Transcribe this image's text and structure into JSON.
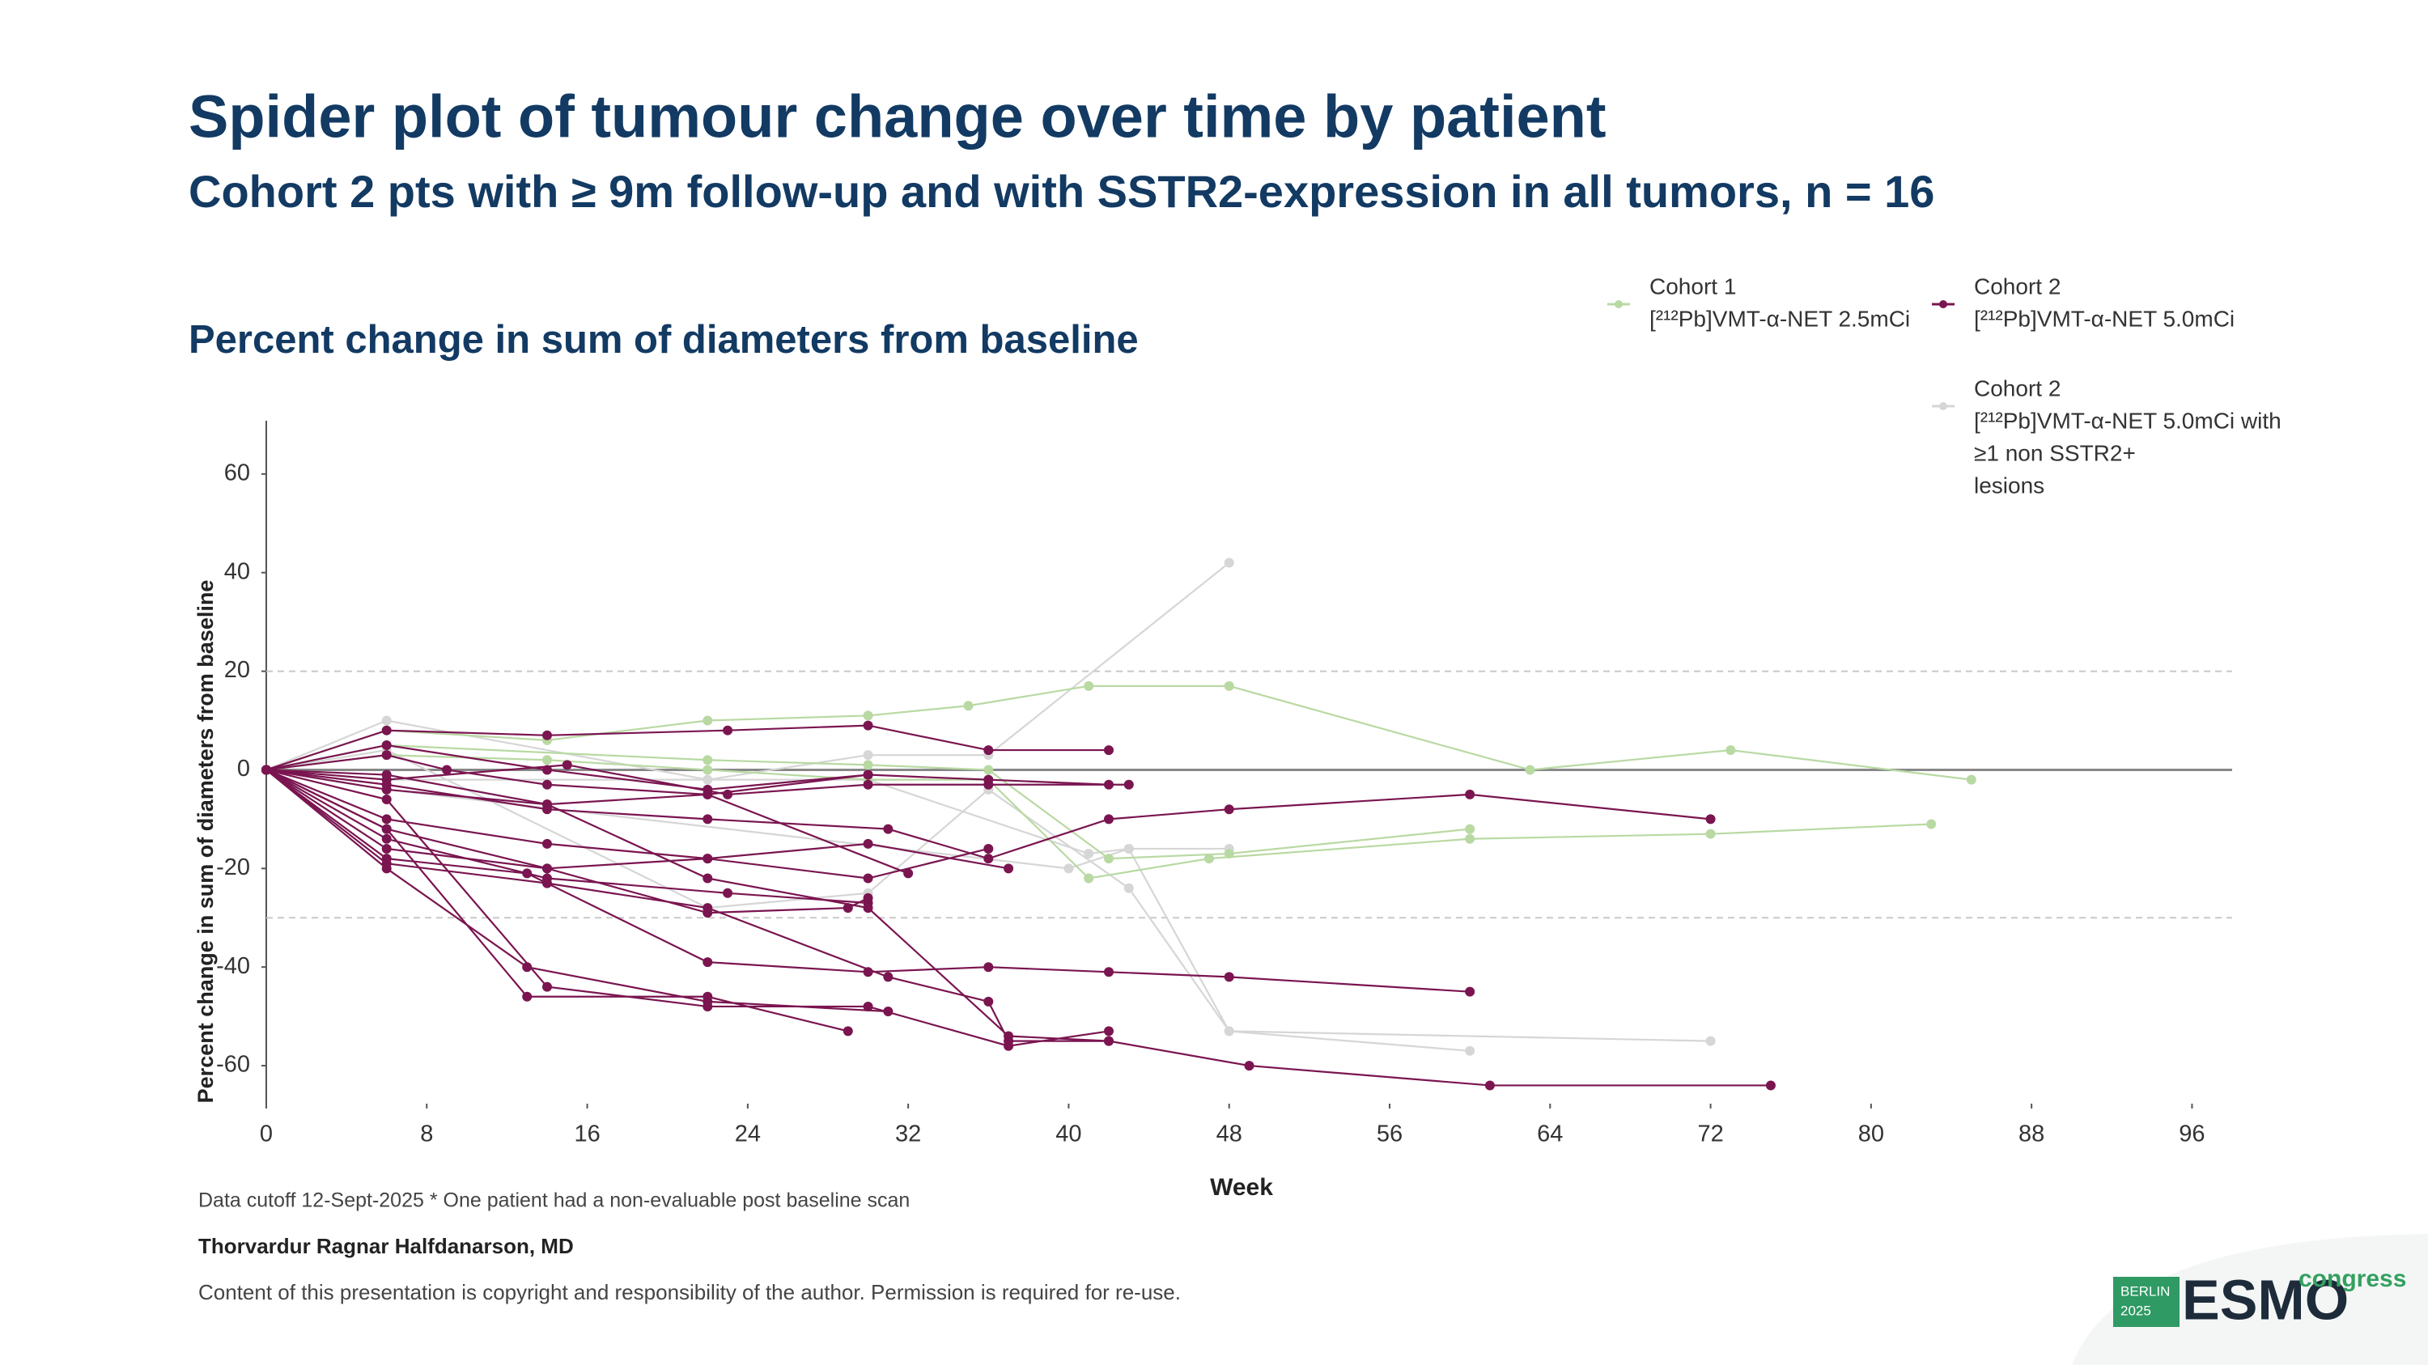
{
  "title": "Spider plot of tumour change over time by patient",
  "subtitle": "Cohort 2 pts with ≥ 9m follow-up and with SSTR2-expression in all tumors, n = 16",
  "chart_data": {
    "type": "line",
    "title": "Percent change in sum of diameters from baseline",
    "ylabel": "Percent change in sum of diameters from baseline",
    "xlabel": "Week",
    "xlim": [
      0,
      98
    ],
    "ylim": [
      -67.7,
      70.8
    ],
    "xticks": [
      0,
      8,
      16,
      24,
      32,
      40,
      48,
      56,
      64,
      72,
      80,
      88,
      96
    ],
    "yticks": [
      -60,
      -40,
      -20,
      0,
      20,
      40,
      60
    ],
    "reference_lines": [
      {
        "value": 20,
        "style": "dashed"
      },
      {
        "value": -30,
        "style": "dashed"
      },
      {
        "value": 0,
        "style": "solid"
      }
    ],
    "series": [
      {
        "name": "Cohort 1",
        "description": [
          "[²¹²Pb]VMT-α-NET 2.5mCi"
        ],
        "color": "#b9d9a3",
        "patients": [
          {
            "x": [
              0,
              6,
              14,
              22,
              30,
              35,
              41,
              48,
              63,
              73,
              85
            ],
            "values": [
              0,
              8,
              6,
              10,
              11,
              13,
              17,
              17,
              0,
              4,
              -2
            ]
          },
          {
            "x": [
              0,
              6,
              14,
              22,
              30,
              36,
              41,
              47,
              60,
              72,
              83
            ],
            "values": [
              0,
              3,
              2,
              0,
              -2,
              -2,
              -22,
              -18,
              -14,
              -13,
              -11
            ]
          },
          {
            "x": [
              0,
              6,
              22,
              30,
              36,
              42,
              48,
              60
            ],
            "values": [
              0,
              5,
              2,
              1,
              0,
              -18,
              -17,
              -12
            ]
          }
        ]
      },
      {
        "name": "Cohort 2",
        "description": [
          "[²¹²Pb]VMT-α-NET 5.0mCi"
        ],
        "color": "#7a1550",
        "patients": [
          {
            "x": [
              0,
              6,
              14,
              23,
              30,
              36,
              42
            ],
            "values": [
              0,
              8,
              7,
              8,
              9,
              4,
              4
            ]
          },
          {
            "x": [
              0,
              6,
              15,
              23,
              30,
              36,
              43
            ],
            "values": [
              0,
              -2,
              1,
              -5,
              -3,
              -3,
              -3
            ]
          },
          {
            "x": [
              0,
              6,
              14,
              22,
              30,
              36,
              42
            ],
            "values": [
              0,
              -4,
              -7,
              -5,
              -1,
              -2,
              -3
            ]
          },
          {
            "x": [
              0,
              6,
              14,
              22,
              31,
              36,
              42,
              48,
              60,
              72
            ],
            "values": [
              0,
              -3,
              -8,
              -10,
              -12,
              -18,
              -10,
              -8,
              -5,
              -10
            ]
          },
          {
            "x": [
              0,
              6,
              14,
              22,
              30,
              37
            ],
            "values": [
              0,
              -10,
              -15,
              -18,
              -15,
              -20
            ]
          },
          {
            "x": [
              0,
              6,
              14,
              22,
              30,
              36
            ],
            "values": [
              0,
              -12,
              -20,
              -18,
              -22,
              -16
            ]
          },
          {
            "x": [
              0,
              6,
              14,
              23,
              30
            ],
            "values": [
              0,
              -14,
              -22,
              -25,
              -27
            ]
          },
          {
            "x": [
              0,
              6,
              14,
              22,
              29,
              30
            ],
            "values": [
              0,
              -16,
              -20,
              -29,
              -28,
              -26
            ]
          },
          {
            "x": [
              0,
              6,
              13,
              22,
              30,
              36,
              42,
              48,
              60
            ],
            "values": [
              0,
              -18,
              -21,
              -39,
              -41,
              -40,
              -41,
              -42,
              -45
            ]
          },
          {
            "x": [
              0,
              6,
              13,
              22,
              31
            ],
            "values": [
              0,
              -20,
              -40,
              -47,
              -49
            ]
          },
          {
            "x": [
              0,
              6,
              14,
              22,
              30,
              37,
              42
            ],
            "values": [
              0,
              -6,
              -44,
              -48,
              -48,
              -56,
              -53
            ]
          },
          {
            "x": [
              0,
              6,
              13,
              22,
              29
            ],
            "values": [
              0,
              -12,
              -46,
              -46,
              -53
            ]
          },
          {
            "x": [
              0,
              6,
              14,
              22,
              31,
              36,
              37,
              42
            ],
            "values": [
              0,
              -19,
              -23,
              -28,
              -42,
              -47,
              -55,
              -55
            ]
          },
          {
            "x": [
              0,
              6,
              14,
              22,
              30,
              37,
              42,
              49,
              61,
              75
            ],
            "values": [
              0,
              -1,
              -7,
              -22,
              -28,
              -54,
              -55,
              -60,
              -64,
              -64
            ]
          },
          {
            "x": [
              0,
              6,
              14,
              22,
              30
            ],
            "values": [
              0,
              5,
              0,
              -4,
              -1
            ]
          },
          {
            "x": [
              0,
              6,
              9,
              14,
              22,
              32
            ],
            "values": [
              0,
              3,
              0,
              -3,
              -5,
              -21
            ]
          }
        ]
      },
      {
        "name": "Cohort 2",
        "description": [
          "[²¹²Pb]VMT-α-NET 5.0mCi with",
          "≥1 non SSTR2+",
          "lesions"
        ],
        "color": "#d6d6d6",
        "patients": [
          {
            "x": [
              0,
              6,
              22,
              30,
              36,
              48
            ],
            "values": [
              0,
              10,
              -2,
              3,
              3,
              42
            ]
          },
          {
            "x": [
              0,
              6,
              22,
              30,
              36,
              43,
              48,
              60
            ],
            "values": [
              0,
              4,
              -28,
              -25,
              -4,
              -24,
              -53,
              -57
            ]
          },
          {
            "x": [
              0,
              6,
              30,
              41,
              43,
              48,
              72
            ],
            "values": [
              0,
              -2,
              -2,
              -17,
              -16,
              -53,
              -55
            ]
          },
          {
            "x": [
              0,
              6,
              40,
              43,
              48
            ],
            "values": [
              0,
              -4,
              -20,
              -16,
              -16
            ]
          }
        ]
      }
    ]
  },
  "footnotes": [
    "Data cutoff 12-Sept-2025 * One patient had a non-evaluable post baseline scan",
    "Thorvardur Ragnar Halfdanarson, MD",
    "Content of this presentation is copyright and responsibility of the author. Permission is required for re-use."
  ],
  "logo": {
    "city": "BERLIN",
    "year": "2025",
    "brand": "ESMO",
    "event": "congress"
  }
}
